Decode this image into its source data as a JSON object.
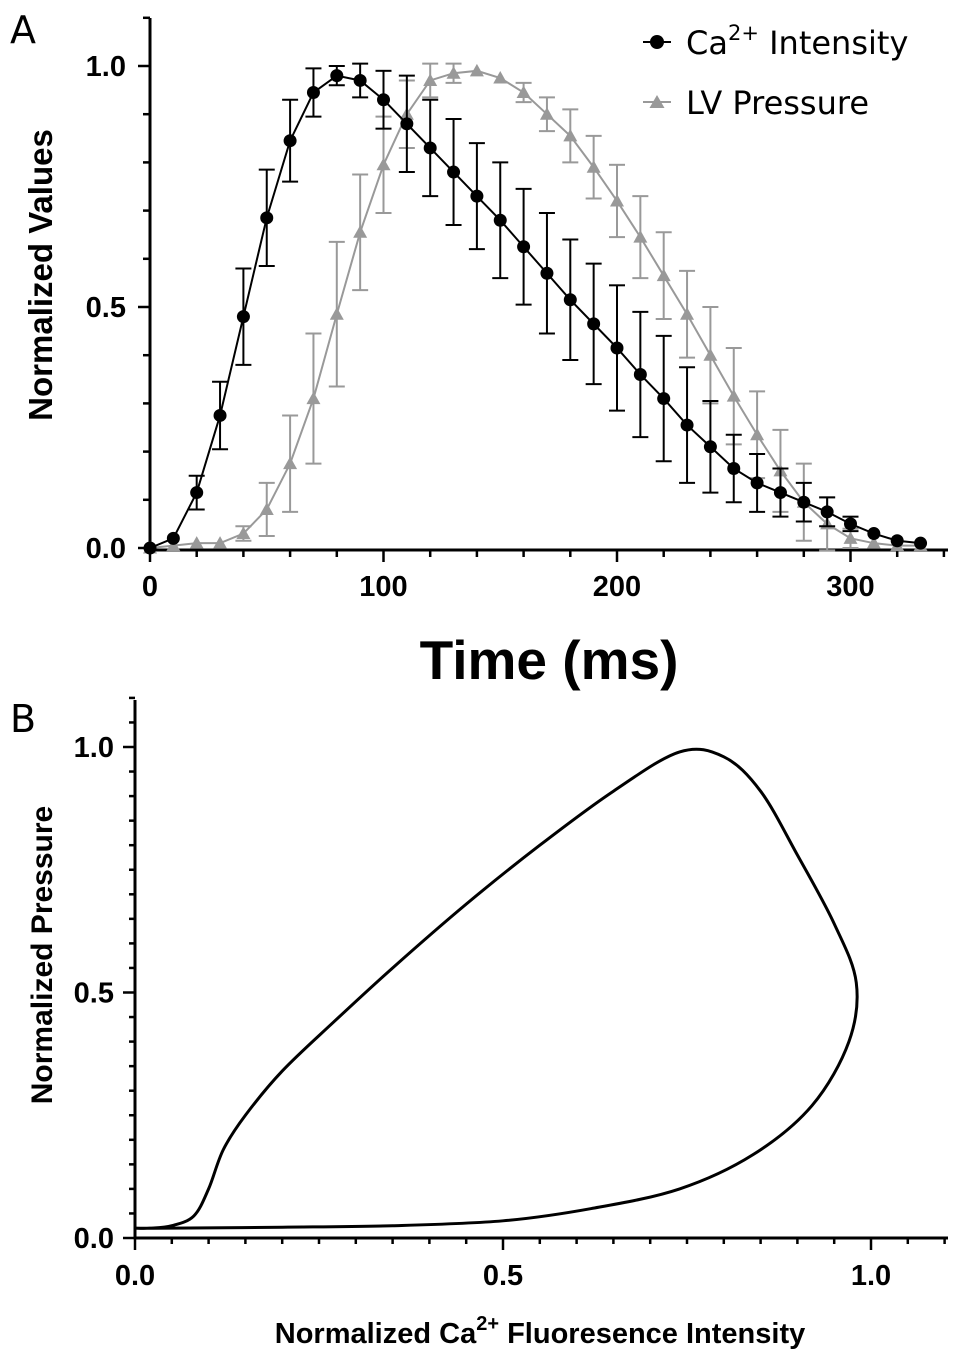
{
  "panels": {
    "a": {
      "letter": "A"
    },
    "b": {
      "letter": "B"
    }
  },
  "chart_data": [
    {
      "type": "line",
      "panel": "A",
      "title": "",
      "xlabel": "Time (ms)",
      "ylabel": "Normalized Values",
      "xlim": [
        0,
        340
      ],
      "ylim": [
        0,
        1.1
      ],
      "x_ticks": [
        0,
        100,
        200,
        300
      ],
      "x_tick_labels": [
        "0",
        "100",
        "200",
        "300"
      ],
      "y_ticks": [
        0,
        0.5,
        1.0
      ],
      "y_tick_labels": [
        "0.0",
        "0.5",
        "1.0"
      ],
      "grid": false,
      "legend_position": "top-right",
      "legend": {
        "ca_label_pre": "Ca",
        "ca_label_sup": "2+",
        "ca_label_post": " Intensity",
        "lv_label": "LV Pressure"
      },
      "x": [
        0,
        10,
        20,
        30,
        40,
        50,
        60,
        70,
        80,
        90,
        100,
        110,
        120,
        130,
        140,
        150,
        160,
        170,
        180,
        190,
        200,
        210,
        220,
        230,
        240,
        250,
        260,
        270,
        280,
        290,
        300,
        310,
        320,
        330
      ],
      "series": [
        {
          "key": "ca",
          "marker": "circle",
          "color": "#000000",
          "values": [
            0.0,
            0.02,
            0.115,
            0.275,
            0.48,
            0.685,
            0.845,
            0.945,
            0.98,
            0.97,
            0.93,
            0.88,
            0.83,
            0.78,
            0.73,
            0.68,
            0.625,
            0.57,
            0.515,
            0.465,
            0.415,
            0.36,
            0.31,
            0.255,
            0.21,
            0.165,
            0.135,
            0.115,
            0.095,
            0.075,
            0.05,
            0.03,
            0.015,
            0.01
          ],
          "errors": [
            0.0,
            0.0,
            0.035,
            0.07,
            0.1,
            0.1,
            0.085,
            0.05,
            0.02,
            0.035,
            0.06,
            0.1,
            0.1,
            0.11,
            0.11,
            0.12,
            0.12,
            0.125,
            0.125,
            0.125,
            0.13,
            0.13,
            0.13,
            0.12,
            0.095,
            0.07,
            0.06,
            0.05,
            0.04,
            0.03,
            0.015,
            0.0,
            0.0,
            0.0
          ]
        },
        {
          "key": "lv",
          "marker": "triangle",
          "color": "#999999",
          "values": [
            0.0,
            0.005,
            0.01,
            0.01,
            0.03,
            0.08,
            0.175,
            0.31,
            0.485,
            0.655,
            0.795,
            0.9,
            0.97,
            0.985,
            0.99,
            0.975,
            0.945,
            0.9,
            0.855,
            0.79,
            0.72,
            0.645,
            0.565,
            0.485,
            0.4,
            0.315,
            0.235,
            0.16,
            0.095,
            0.05,
            0.02,
            0.01,
            0.005,
            0.005
          ],
          "errors": [
            0.0,
            0.0,
            0.0,
            0.0,
            0.015,
            0.055,
            0.1,
            0.135,
            0.15,
            0.12,
            0.1,
            0.07,
            0.035,
            0.02,
            0.0,
            0.0,
            0.02,
            0.035,
            0.055,
            0.065,
            0.075,
            0.085,
            0.09,
            0.09,
            0.1,
            0.1,
            0.09,
            0.085,
            0.08,
            0.055,
            0.02,
            0.0,
            0.0,
            0.0
          ]
        }
      ]
    },
    {
      "type": "line",
      "panel": "B",
      "title": "",
      "xlabel_pre": "Normalized Ca",
      "xlabel_sup": "2+",
      "xlabel_post": " Fluoresence Intensity",
      "ylabel": "Normalized Pressure",
      "xlim": [
        0,
        1.1
      ],
      "ylim": [
        0,
        1.1
      ],
      "x_ticks": [
        0,
        0.5,
        1.0
      ],
      "x_tick_labels": [
        "0.0",
        "0.5",
        "1.0"
      ],
      "y_ticks": [
        0,
        0.5,
        1.0
      ],
      "y_tick_labels": [
        "0.0",
        "0.5",
        "1.0"
      ],
      "grid": false,
      "loop_points": [
        [
          0.0,
          0.02
        ],
        [
          0.02,
          0.02
        ],
        [
          0.05,
          0.025
        ],
        [
          0.08,
          0.045
        ],
        [
          0.1,
          0.1
        ],
        [
          0.12,
          0.18
        ],
        [
          0.15,
          0.25
        ],
        [
          0.2,
          0.34
        ],
        [
          0.27,
          0.44
        ],
        [
          0.35,
          0.55
        ],
        [
          0.45,
          0.68
        ],
        [
          0.55,
          0.8
        ],
        [
          0.65,
          0.91
        ],
        [
          0.74,
          0.99
        ],
        [
          0.8,
          0.98
        ],
        [
          0.85,
          0.91
        ],
        [
          0.9,
          0.78
        ],
        [
          0.95,
          0.64
        ],
        [
          0.98,
          0.52
        ],
        [
          0.97,
          0.4
        ],
        [
          0.92,
          0.27
        ],
        [
          0.84,
          0.17
        ],
        [
          0.74,
          0.1
        ],
        [
          0.62,
          0.06
        ],
        [
          0.5,
          0.035
        ],
        [
          0.35,
          0.025
        ],
        [
          0.2,
          0.022
        ],
        [
          0.05,
          0.02
        ],
        [
          0.0,
          0.02
        ]
      ]
    }
  ]
}
